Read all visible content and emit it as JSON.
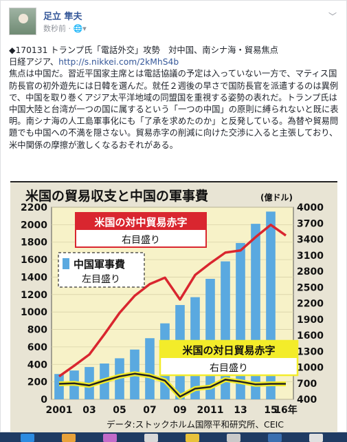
{
  "post": {
    "author": "足立 隼夫",
    "timestamp": "数秒前",
    "meta_separator": "·",
    "text_lines": [
      "◆170131 トランプ氏「電話外交」攻勢　対中国、南シナ海・貿易焦点"
    ],
    "link_prefix": "日経アジア、",
    "link_url": "http://s.nikkei.com/2kMhS4b",
    "body": "焦点は中国だ。習近平国家主席とは電話協議の予定は入っていない一方で、マティス国防長官の初外遊先には日韓を選んだ。就任２週後の早さで国防長官を派遣するのは異例で、中国を取り巻くアジア太平洋地域の同盟国を重視する姿勢の表れだ。トランプ氏は中国大陸と台湾が一つの国に属するという「一つの中国」の原則に縛られないと既に表明。南シナ海の人工島軍事化にも「了承を求めたのか」と反発している。為替や貿易問題でも中国への不満を隠さない。貿易赤字の削減に向けた交渉に入ると主張しており、米中関係の摩擦が激しくなるおそれがある。"
  },
  "chart_data": {
    "type": "bar",
    "title": "米国の貿易収支と中国の軍事費",
    "unit": "(億ドル)",
    "source": "データ:ストックホルム国際平和研究所、CEIC",
    "x": [
      2001,
      2002,
      2003,
      2004,
      2005,
      2006,
      2007,
      2008,
      2009,
      2010,
      2011,
      2012,
      2013,
      2014,
      2015,
      2016
    ],
    "x_tick_labels": [
      "2001",
      "03",
      "05",
      "07",
      "09",
      "2011",
      "13",
      "15",
      "16年"
    ],
    "left_axis": {
      "ticks": [
        0,
        200,
        400,
        600,
        800,
        1000,
        1200,
        1400,
        1600,
        1800,
        2000,
        2200
      ],
      "ylim": [
        0,
        2200
      ]
    },
    "right_axis": {
      "ticks": [
        400,
        700,
        1000,
        1300,
        1600,
        1900,
        2200,
        2500,
        2800,
        3100,
        3400,
        3700,
        4000
      ],
      "ylim": [
        400,
        4000
      ]
    },
    "series": [
      {
        "name": "中国軍事費",
        "axis_note": "左目盛り",
        "type": "bar",
        "color": "#5aa9e0",
        "values": [
          290,
          330,
          370,
          410,
          470,
          570,
          700,
          870,
          1080,
          1170,
          1380,
          1580,
          1790,
          2010,
          2150,
          null
        ]
      },
      {
        "name": "米国の対中貿易赤字",
        "axis_note": "右目盛り",
        "type": "line",
        "color": "#d9262f",
        "values": [
          830,
          1030,
          1240,
          1620,
          2020,
          2340,
          2560,
          2680,
          2270,
          2730,
          2950,
          3150,
          3190,
          3440,
          3670,
          3470
        ]
      },
      {
        "name": "米国の対日貿易赤字",
        "axis_note": "右目盛り",
        "type": "line",
        "color": "#222222",
        "values": [
          690,
          700,
          660,
          750,
          830,
          880,
          840,
          750,
          450,
          600,
          630,
          770,
          730,
          680,
          690,
          690
        ]
      }
    ],
    "colors": {
      "background": "#e8e4d4",
      "bar": "#5aa9e0",
      "china_deficit": "#d9262f",
      "japan_deficit": "#222222",
      "japan_line_glow": "#f3ec2a"
    }
  }
}
